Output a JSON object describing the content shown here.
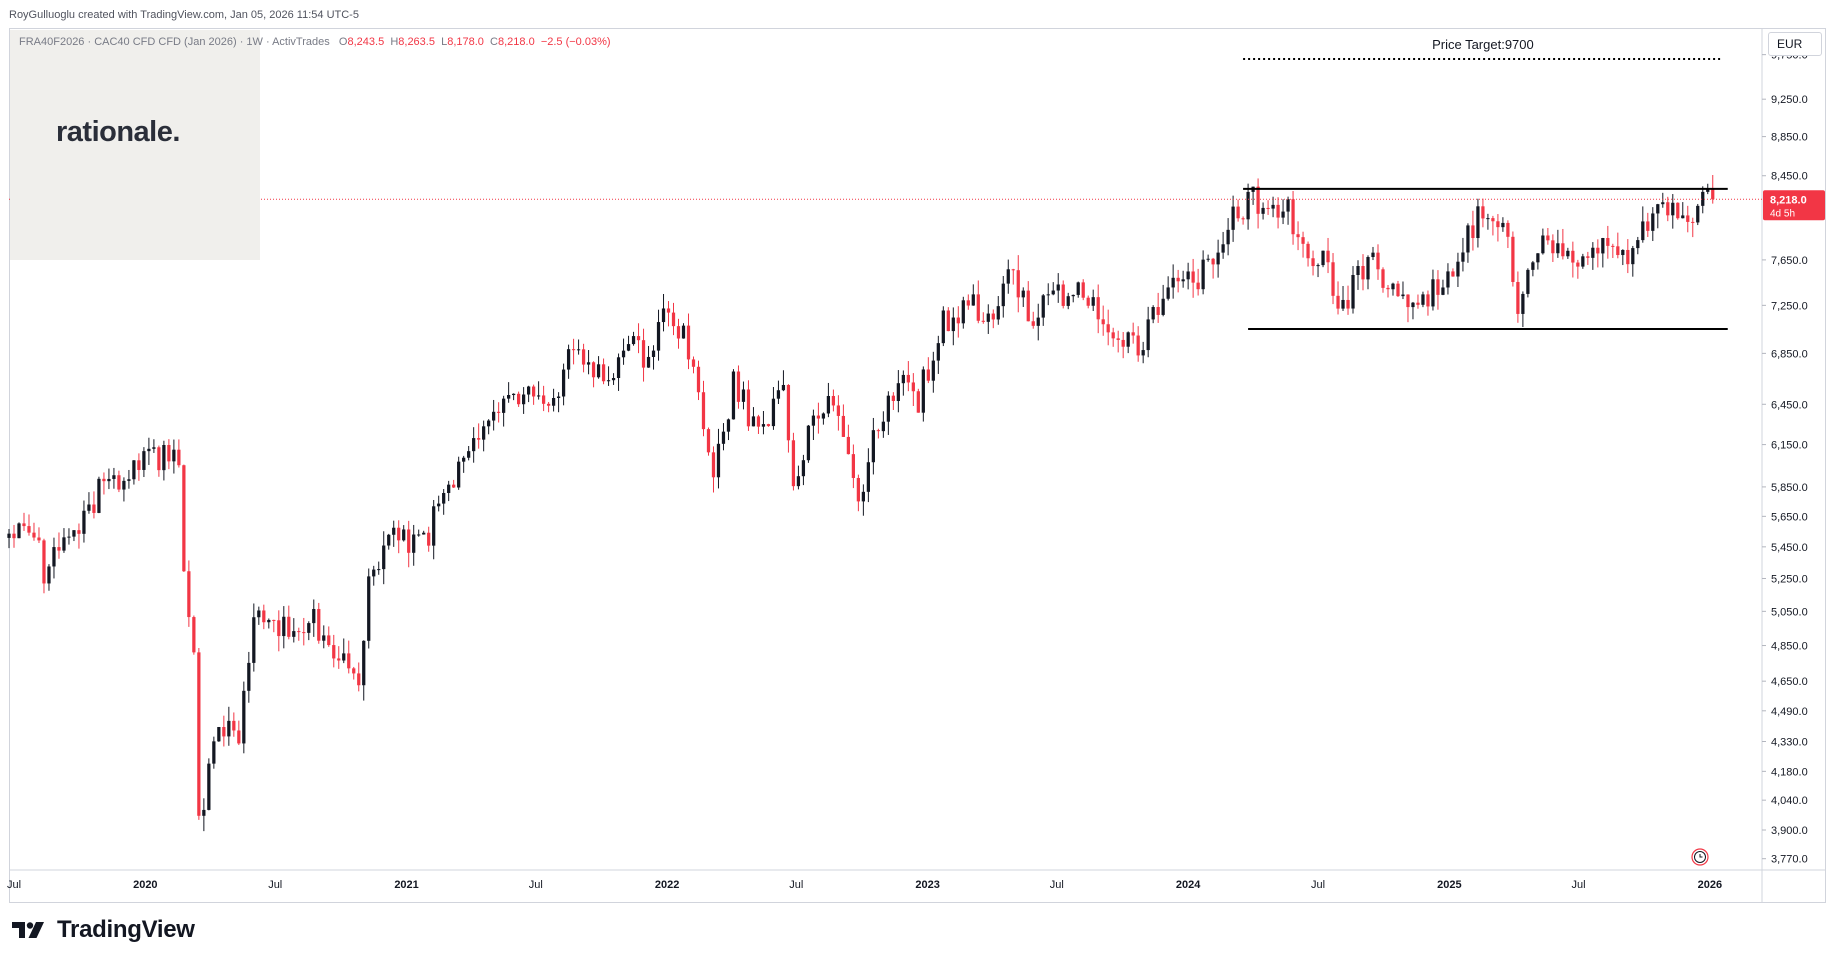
{
  "header": {
    "credit": "RoyGulluoglu created with TradingView.com, Jan 05, 2026 11:54 UTC-5"
  },
  "legend": {
    "symbol": "FRA40F2026 · CAC40 CFD CFD (Jan 2026) · 1W · ActivTrades",
    "o_label": "O",
    "o_value": "8,243.5",
    "h_label": "H",
    "h_value": "8,263.5",
    "l_label": "L",
    "l_value": "8,178.0",
    "c_label": "C",
    "c_value": "8,218.0",
    "change": "−2.5 (−0.03%)"
  },
  "watermark": {
    "text": "rationale."
  },
  "price_scale": {
    "currency": "EUR",
    "last_price": "8,218.0",
    "countdown": "4d 5h"
  },
  "footer": {
    "brand": "TradingView"
  },
  "colors": {
    "up": "#131722",
    "down": "#f23645",
    "last_price_line": "#f23645",
    "annotation": "#000000"
  },
  "icons": {
    "brand": "tradingview-logo-icon",
    "settings": "replay-clock-icon"
  },
  "chart_data": {
    "type": "candlestick",
    "interval": "1W",
    "y_scale": "log",
    "ylim": [
      3720,
      10050
    ],
    "xlim": [
      "2019-06-24",
      "2026-03-15"
    ],
    "y_ticks": [
      "9,750.0",
      "9,250.0",
      "8,850.0",
      "8,450.0",
      "7,650.0",
      "7,250.0",
      "6,850.0",
      "6,450.0",
      "6,150.0",
      "5,850.0",
      "5,650.0",
      "5,450.0",
      "5,250.0",
      "5,050.0",
      "4,850.0",
      "4,650.0",
      "4,490.0",
      "4,330.0",
      "4,180.0",
      "4,040.0",
      "3,900.0",
      "3,770.0"
    ],
    "y_tick_values": [
      9750,
      9250,
      8850,
      8450,
      7650,
      7250,
      6850,
      6450,
      6150,
      5850,
      5650,
      5450,
      5250,
      5050,
      4850,
      4650,
      4490,
      4330,
      4180,
      4040,
      3900,
      3770
    ],
    "x_ticks": [
      {
        "label": "Jul",
        "date": "2019-07-01",
        "year": false
      },
      {
        "label": "2020",
        "date": "2020-01-01",
        "year": true
      },
      {
        "label": "Jul",
        "date": "2020-07-01",
        "year": false
      },
      {
        "label": "2021",
        "date": "2021-01-01",
        "year": true
      },
      {
        "label": "Jul",
        "date": "2021-07-01",
        "year": false
      },
      {
        "label": "2022",
        "date": "2022-01-01",
        "year": true
      },
      {
        "label": "Jul",
        "date": "2022-07-01",
        "year": false
      },
      {
        "label": "2023",
        "date": "2023-01-01",
        "year": true
      },
      {
        "label": "Jul",
        "date": "2023-07-01",
        "year": false
      },
      {
        "label": "2024",
        "date": "2024-01-01",
        "year": true
      },
      {
        "label": "Jul",
        "date": "2024-07-01",
        "year": false
      },
      {
        "label": "2025",
        "date": "2025-01-01",
        "year": true
      },
      {
        "label": "Jul",
        "date": "2025-07-01",
        "year": false
      },
      {
        "label": "2026",
        "date": "2026-01-01",
        "year": true
      }
    ],
    "path_points": [
      [
        "2019-06-24",
        5580
      ],
      [
        "2019-07-22",
        5620
      ],
      [
        "2019-08-12",
        5310
      ],
      [
        "2019-09-02",
        5420
      ],
      [
        "2019-10-07",
        5600
      ],
      [
        "2019-11-04",
        5890
      ],
      [
        "2019-12-09",
        5960
      ],
      [
        "2020-01-13",
        6050
      ],
      [
        "2020-02-17",
        6060
      ],
      [
        "2020-02-24",
        5320
      ],
      [
        "2020-03-09",
        4850
      ],
      [
        "2020-03-16",
        3900
      ],
      [
        "2020-03-30",
        4200
      ],
      [
        "2020-04-20",
        4400
      ],
      [
        "2020-05-11",
        4300
      ],
      [
        "2020-06-01",
        5000
      ],
      [
        "2020-06-15",
        5050
      ],
      [
        "2020-07-20",
        4950
      ],
      [
        "2020-08-24",
        5000
      ],
      [
        "2020-09-21",
        4850
      ],
      [
        "2020-10-26",
        4600
      ],
      [
        "2020-11-09",
        5300
      ],
      [
        "2020-12-14",
        5520
      ],
      [
        "2021-01-25",
        5450
      ],
      [
        "2021-02-22",
        5800
      ],
      [
        "2021-03-29",
        6080
      ],
      [
        "2021-04-26",
        6300
      ],
      [
        "2021-05-24",
        6450
      ],
      [
        "2021-06-21",
        6600
      ],
      [
        "2021-07-19",
        6400
      ],
      [
        "2021-08-16",
        6850
      ],
      [
        "2021-09-20",
        6650
      ],
      [
        "2021-10-18",
        6750
      ],
      [
        "2021-11-15",
        7100
      ],
      [
        "2021-11-29",
        6800
      ],
      [
        "2022-01-03",
        7200
      ],
      [
        "2022-01-24",
        7000
      ],
      [
        "2022-02-21",
        6300
      ],
      [
        "2022-03-07",
        5980
      ],
      [
        "2022-04-04",
        6600
      ],
      [
        "2022-05-09",
        6250
      ],
      [
        "2022-06-13",
        6500
      ],
      [
        "2022-06-27",
        5900
      ],
      [
        "2022-07-25",
        6300
      ],
      [
        "2022-08-15",
        6500
      ],
      [
        "2022-09-05",
        6150
      ],
      [
        "2022-09-26",
        5750
      ],
      [
        "2022-10-24",
        6350
      ],
      [
        "2022-11-21",
        6650
      ],
      [
        "2022-12-19",
        6500
      ],
      [
        "2023-01-23",
        7100
      ],
      [
        "2023-03-06",
        7300
      ],
      [
        "2023-03-20",
        7000
      ],
      [
        "2023-04-24",
        7500
      ],
      [
        "2023-05-29",
        7150
      ],
      [
        "2023-06-26",
        7300
      ],
      [
        "2023-07-31",
        7350
      ],
      [
        "2023-08-21",
        7200
      ],
      [
        "2023-09-25",
        7050
      ],
      [
        "2023-10-23",
        6900
      ],
      [
        "2023-11-20",
        7250
      ],
      [
        "2023-12-18",
        7550
      ],
      [
        "2024-01-15",
        7450
      ],
      [
        "2024-02-12",
        7750
      ],
      [
        "2024-03-11",
        8150
      ],
      [
        "2024-04-01",
        8200
      ],
      [
        "2024-04-22",
        8000
      ],
      [
        "2024-05-13",
        8150
      ],
      [
        "2024-06-03",
        7950
      ],
      [
        "2024-06-17",
        7550
      ],
      [
        "2024-07-08",
        7650
      ],
      [
        "2024-08-05",
        7250
      ],
      [
        "2024-08-26",
        7550
      ],
      [
        "2024-09-16",
        7600
      ],
      [
        "2024-10-14",
        7450
      ],
      [
        "2024-11-11",
        7250
      ],
      [
        "2024-12-02",
        7350
      ],
      [
        "2025-01-06",
        7450
      ],
      [
        "2025-02-10",
        8100
      ],
      [
        "2025-03-03",
        8150
      ],
      [
        "2025-03-24",
        7900
      ],
      [
        "2025-04-07",
        7200
      ],
      [
        "2025-04-21",
        7600
      ],
      [
        "2025-05-19",
        7900
      ],
      [
        "2025-06-16",
        7650
      ],
      [
        "2025-07-14",
        7750
      ],
      [
        "2025-08-11",
        7850
      ],
      [
        "2025-09-08",
        7700
      ],
      [
        "2025-10-06",
        8000
      ],
      [
        "2025-10-27",
        8150
      ],
      [
        "2025-11-17",
        8050
      ],
      [
        "2025-12-15",
        8150
      ],
      [
        "2026-01-05",
        8218
      ]
    ],
    "annotations": {
      "resistance": {
        "price": 8320,
        "from": "2024-03-18",
        "to": "2026-01-26"
      },
      "support": {
        "price": 7050,
        "from": "2024-03-25",
        "to": "2026-01-26"
      },
      "target": {
        "price": 9700,
        "from": "2024-03-18",
        "to": "2026-01-19",
        "label": "Price Target:9700"
      },
      "last_price": 8218
    }
  }
}
